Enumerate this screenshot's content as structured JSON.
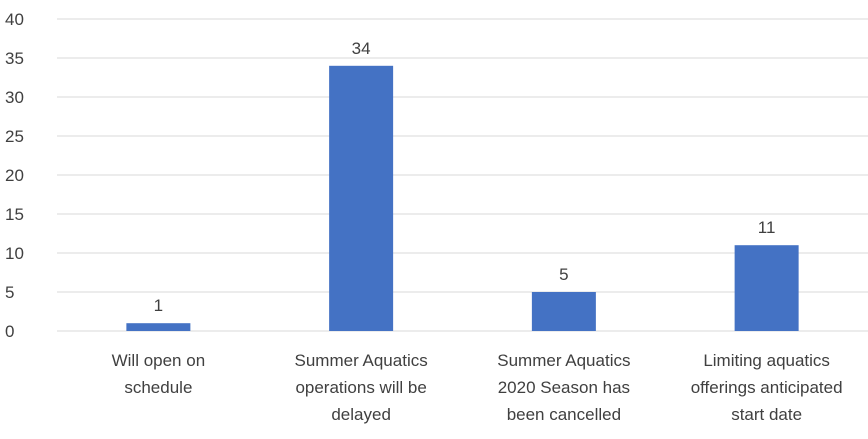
{
  "chart_data": {
    "type": "bar",
    "categories": [
      [
        "Will open on",
        "schedule"
      ],
      [
        "Summer Aquatics",
        "operations will be",
        "delayed"
      ],
      [
        "Summer Aquatics",
        "2020 Season has",
        "been cancelled"
      ],
      [
        "Limiting aquatics",
        "offerings anticipated",
        "start date"
      ]
    ],
    "values": [
      1,
      34,
      5,
      11
    ],
    "data_labels": [
      "1",
      "34",
      "5",
      "11"
    ],
    "ylim": [
      0,
      40
    ],
    "yticks": [
      0,
      5,
      10,
      15,
      20,
      25,
      30,
      35,
      40
    ],
    "grid": true,
    "legend": "none",
    "title": "",
    "xlabel": "",
    "ylabel": ""
  },
  "colors": {
    "bar": "#4472C4",
    "grid": "#D9D9D9",
    "text": "#404040"
  }
}
